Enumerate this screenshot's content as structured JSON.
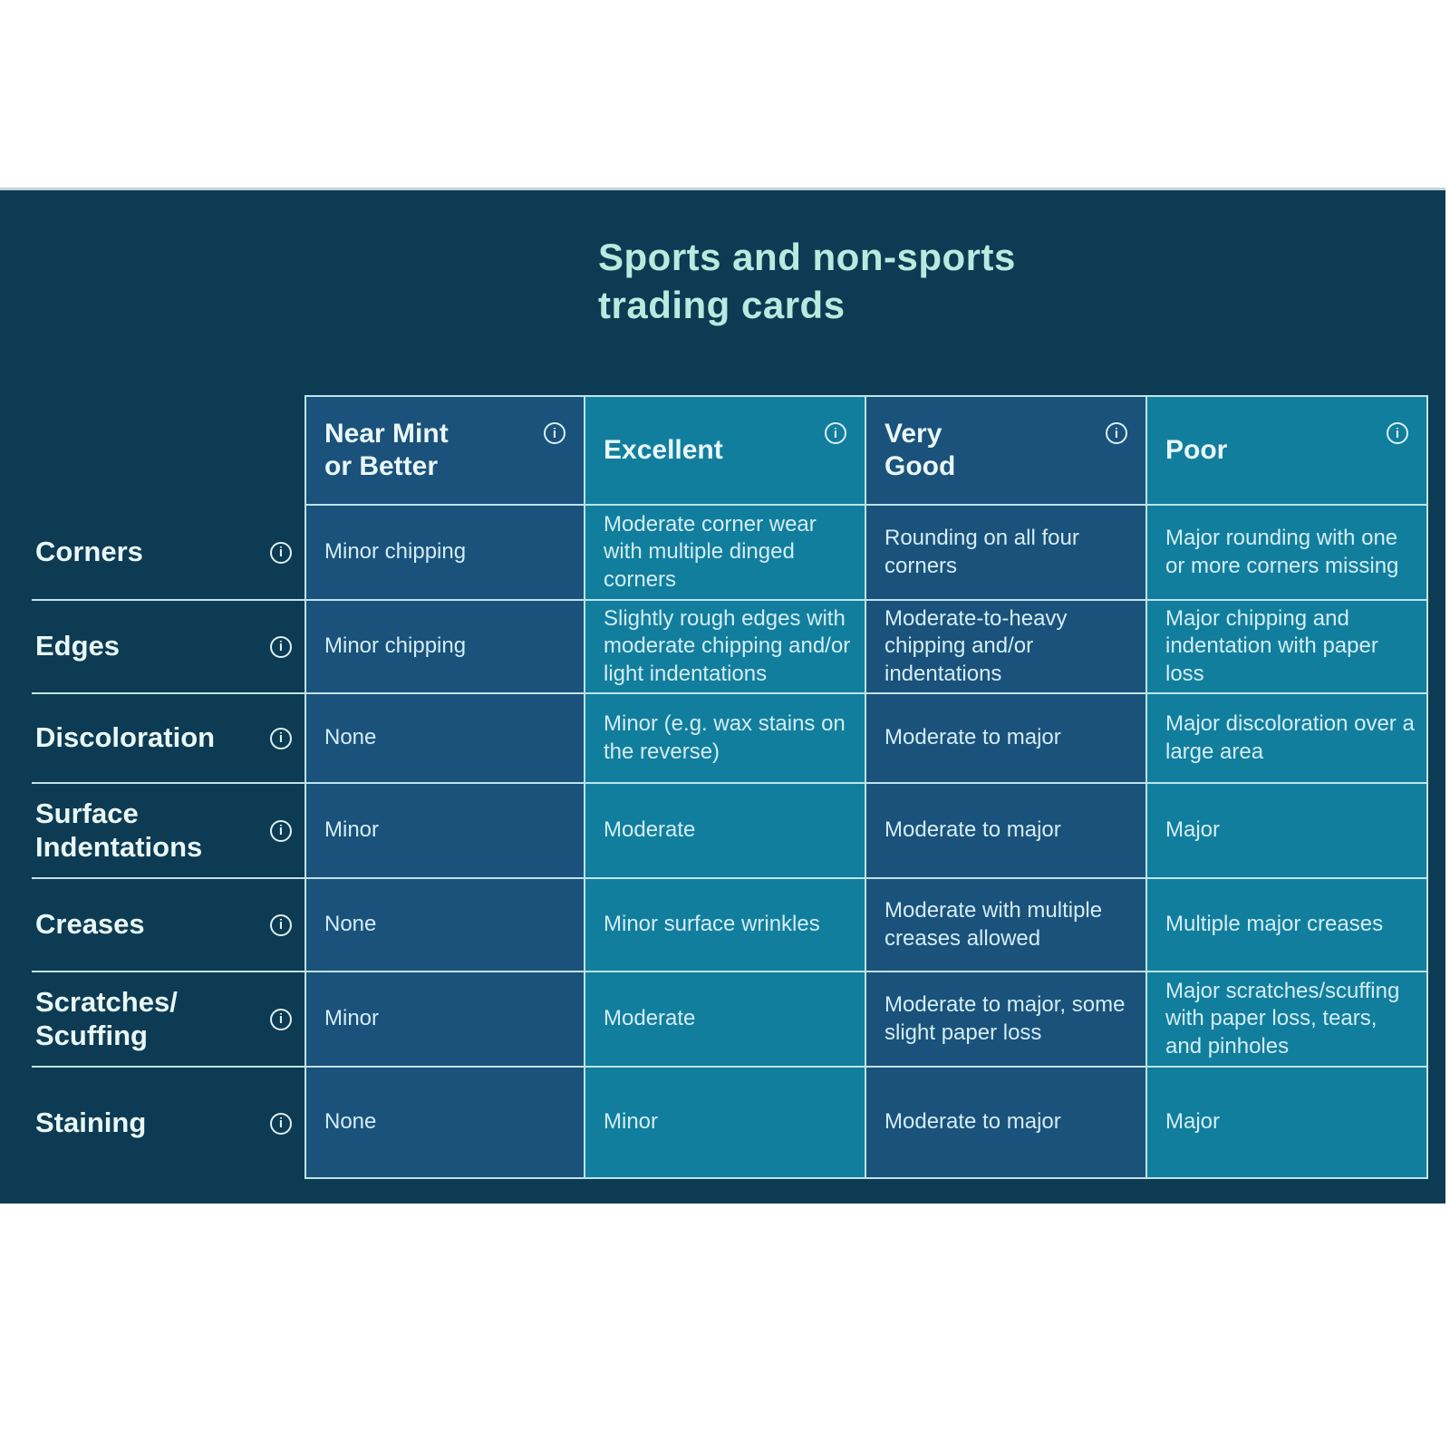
{
  "icons": {
    "info": "i"
  },
  "colors": {
    "panel_background": "#0d3b53",
    "dark_column_cell": "#1a527b",
    "light_column_cell": "#127e9d",
    "grid_line": "#bfe3ea",
    "title_text": "#b6ecdf",
    "cell_text": "#d3edf4"
  },
  "chart_data": {
    "type": "table",
    "title": "Sports and non-sports\ntrading cards",
    "column_headers": [
      "Near Mint\nor Better",
      "Excellent",
      "Very\nGood",
      "Poor"
    ],
    "row_headers": [
      "Corners",
      "Edges",
      "Discoloration",
      "Surface\nIndentations",
      "Creases",
      "Scratches/\nScuffing",
      "Staining"
    ],
    "cells": [
      [
        "Minor chipping",
        "Moderate corner wear with multiple dinged corners",
        "Rounding on all four corners",
        "Major rounding with one or more corners missing"
      ],
      [
        "Minor chipping",
        "Slightly rough edges with moderate chipping and/or light indentations",
        "Moderate-to-heavy chipping and/or indentations",
        "Major chipping and indentation with paper loss"
      ],
      [
        "None",
        "Minor (e.g. wax stains on the reverse)",
        "Moderate to major",
        "Major discoloration over a large area"
      ],
      [
        "Minor",
        "Moderate",
        "Moderate to major",
        "Major"
      ],
      [
        "None",
        "Minor surface wrinkles",
        "Moderate with multiple creases allowed",
        "Multiple major creases"
      ],
      [
        "Minor",
        "Moderate",
        "Moderate to major, some slight paper loss",
        "Major scratches/scuffing with paper loss, tears, and pinholes"
      ],
      [
        "None",
        "Minor",
        "Moderate to major",
        "Major"
      ]
    ]
  }
}
